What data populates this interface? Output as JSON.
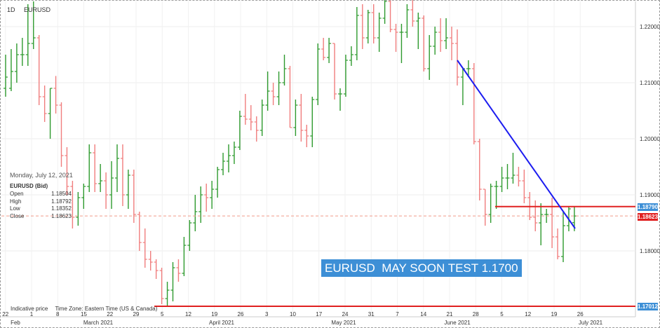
{
  "header": {
    "timeframe": "1D",
    "symbol": "EURUSD"
  },
  "info_panel": {
    "date": "Monday, July 12, 2021",
    "symbol": "EURUSD (Bid)",
    "open_label": "Open",
    "open": "1.18504",
    "high_label": "High",
    "high": "1.18792",
    "low_label": "Low",
    "low": "1.18352",
    "close_label": "Close",
    "close": "1.18623"
  },
  "footer": {
    "price_type": "Indicative price",
    "timezone": "Time Zone: Eastern Time (US & Canada)"
  },
  "annotation": "EURUSD  MAY SOON TEST 1.1700",
  "price_tags": {
    "resistance": "1.18790",
    "last": "1.18623",
    "support": "1.17012"
  },
  "colors": {
    "up": "#2e9a2e",
    "down": "#f07d7d",
    "trendline": "#1c1cf0",
    "level": "#e02020",
    "annotation_bg": "#3d8fd6"
  },
  "chart_data": {
    "type": "ohlc",
    "ylim": [
      1.1695,
      1.2245
    ],
    "y_ticks": [
      1.18,
      1.19,
      1.2,
      1.21,
      1.22
    ],
    "y_tick_labels": [
      "1.18000",
      "1.19000",
      "1.20000",
      "1.21000",
      "1.22000"
    ],
    "x_ticks": [
      "22",
      "1",
      "8",
      "15",
      "22",
      "29",
      "5",
      "12",
      "19",
      "26",
      "3",
      "10",
      "17",
      "24",
      "31",
      "7",
      "14",
      "21",
      "28",
      "5",
      "12",
      "19",
      "26"
    ],
    "x_months": [
      "Feb",
      "March 2021",
      "April 2021",
      "May 2021",
      "June 2021",
      "July 2021"
    ],
    "grid": true,
    "bars": [
      {
        "d": "Feb 18",
        "o": 1.209,
        "h": 1.215,
        "l": 1.2075,
        "c": 1.211
      },
      {
        "d": "Feb 19",
        "o": 1.209,
        "h": 1.216,
        "l": 1.2085,
        "c": 1.212
      },
      {
        "d": "Feb 22",
        "o": 1.212,
        "h": 1.217,
        "l": 1.21,
        "c": 1.215
      },
      {
        "d": "Feb 23",
        "o": 1.215,
        "h": 1.218,
        "l": 1.213,
        "c": 1.215
      },
      {
        "d": "Feb 24",
        "o": 1.215,
        "h": 1.224,
        "l": 1.213,
        "c": 1.217
      },
      {
        "d": "Feb 25",
        "o": 1.217,
        "h": 1.2245,
        "l": 1.216,
        "c": 1.218
      },
      {
        "d": "Feb 26",
        "o": 1.218,
        "h": 1.2185,
        "l": 1.206,
        "c": 1.2075
      },
      {
        "d": "Mar 01",
        "o": 1.2075,
        "h": 1.2095,
        "l": 1.203,
        "c": 1.2045
      },
      {
        "d": "Mar 02",
        "o": 1.2045,
        "h": 1.209,
        "l": 1.2,
        "c": 1.209
      },
      {
        "d": "Mar 03",
        "o": 1.209,
        "h": 1.2112,
        "l": 1.2045,
        "c": 1.206
      },
      {
        "d": "Mar 04",
        "o": 1.206,
        "h": 1.2065,
        "l": 1.195,
        "c": 1.197
      },
      {
        "d": "Mar 05",
        "o": 1.197,
        "h": 1.1985,
        "l": 1.19,
        "c": 1.1915
      },
      {
        "d": "Mar 08",
        "o": 1.1915,
        "h": 1.1925,
        "l": 1.184,
        "c": 1.186
      },
      {
        "d": "Mar 09",
        "o": 1.186,
        "h": 1.1905,
        "l": 1.1845,
        "c": 1.1895
      },
      {
        "d": "Mar 10",
        "o": 1.1895,
        "h": 1.192,
        "l": 1.1875,
        "c": 1.1915
      },
      {
        "d": "Mar 11",
        "o": 1.1915,
        "h": 1.199,
        "l": 1.1905,
        "c": 1.1975
      },
      {
        "d": "Mar 12",
        "o": 1.1975,
        "h": 1.199,
        "l": 1.1905,
        "c": 1.192
      },
      {
        "d": "Mar 15",
        "o": 1.192,
        "h": 1.1955,
        "l": 1.1905,
        "c": 1.1925
      },
      {
        "d": "Mar 16",
        "o": 1.1925,
        "h": 1.194,
        "l": 1.1875,
        "c": 1.19
      },
      {
        "d": "Mar 17",
        "o": 1.19,
        "h": 1.196,
        "l": 1.1875,
        "c": 1.193
      },
      {
        "d": "Mar 18",
        "o": 1.193,
        "h": 1.199,
        "l": 1.1905,
        "c": 1.1965
      },
      {
        "d": "Mar 19",
        "o": 1.1965,
        "h": 1.199,
        "l": 1.188,
        "c": 1.19
      },
      {
        "d": "Mar 22",
        "o": 1.19,
        "h": 1.1945,
        "l": 1.1875,
        "c": 1.1935
      },
      {
        "d": "Mar 23",
        "o": 1.1935,
        "h": 1.1945,
        "l": 1.185,
        "c": 1.1865
      },
      {
        "d": "Mar 24",
        "o": 1.1865,
        "h": 1.187,
        "l": 1.18,
        "c": 1.1815
      },
      {
        "d": "Mar 25",
        "o": 1.1815,
        "h": 1.184,
        "l": 1.177,
        "c": 1.1785
      },
      {
        "d": "Mar 26",
        "o": 1.1785,
        "h": 1.18,
        "l": 1.1765,
        "c": 1.178
      },
      {
        "d": "Mar 29",
        "o": 1.178,
        "h": 1.1785,
        "l": 1.175,
        "c": 1.1765
      },
      {
        "d": "Mar 30",
        "o": 1.1765,
        "h": 1.177,
        "l": 1.1705,
        "c": 1.1715
      },
      {
        "d": "Mar 31",
        "o": 1.1715,
        "h": 1.1745,
        "l": 1.17,
        "c": 1.173
      },
      {
        "d": "Apr 01",
        "o": 1.173,
        "h": 1.178,
        "l": 1.171,
        "c": 1.177
      },
      {
        "d": "Apr 02",
        "o": 1.177,
        "h": 1.1785,
        "l": 1.1745,
        "c": 1.176
      },
      {
        "d": "Apr 05",
        "o": 1.176,
        "h": 1.1825,
        "l": 1.1755,
        "c": 1.181
      },
      {
        "d": "Apr 06",
        "o": 1.181,
        "h": 1.1855,
        "l": 1.18,
        "c": 1.185
      },
      {
        "d": "Apr 07",
        "o": 1.185,
        "h": 1.19,
        "l": 1.1835,
        "c": 1.187
      },
      {
        "d": "Apr 08",
        "o": 1.187,
        "h": 1.1915,
        "l": 1.185,
        "c": 1.19
      },
      {
        "d": "Apr 09",
        "o": 1.19,
        "h": 1.192,
        "l": 1.187,
        "c": 1.1895
      },
      {
        "d": "Apr 12",
        "o": 1.1895,
        "h": 1.1925,
        "l": 1.1875,
        "c": 1.191
      },
      {
        "d": "Apr 13",
        "o": 1.191,
        "h": 1.195,
        "l": 1.1895,
        "c": 1.1945
      },
      {
        "d": "Apr 14",
        "o": 1.1945,
        "h": 1.1975,
        "l": 1.1935,
        "c": 1.196
      },
      {
        "d": "Apr 15",
        "o": 1.196,
        "h": 1.199,
        "l": 1.194,
        "c": 1.197
      },
      {
        "d": "Apr 16",
        "o": 1.197,
        "h": 1.1995,
        "l": 1.1955,
        "c": 1.1985
      },
      {
        "d": "Apr 19",
        "o": 1.1985,
        "h": 1.205,
        "l": 1.198,
        "c": 1.204
      },
      {
        "d": "Apr 20",
        "o": 1.204,
        "h": 1.208,
        "l": 1.2025,
        "c": 1.2035
      },
      {
        "d": "Apr 21",
        "o": 1.2035,
        "h": 1.206,
        "l": 1.2015,
        "c": 1.203
      },
      {
        "d": "Apr 22",
        "o": 1.203,
        "h": 1.204,
        "l": 1.1995,
        "c": 1.2015
      },
      {
        "d": "Apr 23",
        "o": 1.2015,
        "h": 1.207,
        "l": 1.2005,
        "c": 1.206
      },
      {
        "d": "Apr 26",
        "o": 1.206,
        "h": 1.212,
        "l": 1.205,
        "c": 1.2085
      },
      {
        "d": "Apr 27",
        "o": 1.2085,
        "h": 1.21,
        "l": 1.206,
        "c": 1.2075
      },
      {
        "d": "Apr 28",
        "o": 1.2075,
        "h": 1.212,
        "l": 1.206,
        "c": 1.21
      },
      {
        "d": "Apr 29",
        "o": 1.21,
        "h": 1.215,
        "l": 1.2095,
        "c": 1.2125
      },
      {
        "d": "Apr 30",
        "o": 1.2125,
        "h": 1.213,
        "l": 1.202,
        "c": 1.202
      },
      {
        "d": "May 03",
        "o": 1.202,
        "h": 1.207,
        "l": 1.2005,
        "c": 1.206
      },
      {
        "d": "May 04",
        "o": 1.206,
        "h": 1.208,
        "l": 1.1995,
        "c": 1.2015
      },
      {
        "d": "May 05",
        "o": 1.2015,
        "h": 1.2025,
        "l": 1.1985,
        "c": 1.2005
      },
      {
        "d": "May 06",
        "o": 1.2005,
        "h": 1.2075,
        "l": 1.1985,
        "c": 1.207
      },
      {
        "d": "May 07",
        "o": 1.207,
        "h": 1.217,
        "l": 1.206,
        "c": 1.216
      },
      {
        "d": "May 10",
        "o": 1.216,
        "h": 1.218,
        "l": 1.214,
        "c": 1.2145
      },
      {
        "d": "May 11",
        "o": 1.2145,
        "h": 1.218,
        "l": 1.2135,
        "c": 1.217
      },
      {
        "d": "May 12",
        "o": 1.217,
        "h": 1.217,
        "l": 1.207,
        "c": 1.208
      },
      {
        "d": "May 13",
        "o": 1.208,
        "h": 1.209,
        "l": 1.205,
        "c": 1.208
      },
      {
        "d": "May 14",
        "o": 1.208,
        "h": 1.215,
        "l": 1.2075,
        "c": 1.214
      },
      {
        "d": "May 17",
        "o": 1.214,
        "h": 1.2165,
        "l": 1.213,
        "c": 1.215
      },
      {
        "d": "May 18",
        "o": 1.215,
        "h": 1.2235,
        "l": 1.214,
        "c": 1.222
      },
      {
        "d": "May 19",
        "o": 1.222,
        "h": 1.224,
        "l": 1.216,
        "c": 1.218
      },
      {
        "d": "May 20",
        "o": 1.218,
        "h": 1.223,
        "l": 1.217,
        "c": 1.2225
      },
      {
        "d": "May 21",
        "o": 1.2225,
        "h": 1.224,
        "l": 1.217,
        "c": 1.218
      },
      {
        "d": "May 24",
        "o": 1.218,
        "h": 1.2225,
        "l": 1.2155,
        "c": 1.2215
      },
      {
        "d": "May 25",
        "o": 1.2215,
        "h": 1.2265,
        "l": 1.2205,
        "c": 1.2245
      },
      {
        "d": "May 26",
        "o": 1.2245,
        "h": 1.2255,
        "l": 1.219,
        "c": 1.2195
      },
      {
        "d": "May 27",
        "o": 1.2195,
        "h": 1.2205,
        "l": 1.2155,
        "c": 1.219
      },
      {
        "d": "May 28",
        "o": 1.219,
        "h": 1.2205,
        "l": 1.2135,
        "c": 1.219
      },
      {
        "d": "May 31",
        "o": 1.219,
        "h": 1.224,
        "l": 1.218,
        "c": 1.223
      },
      {
        "d": "Jun 01",
        "o": 1.223,
        "h": 1.226,
        "l": 1.22,
        "c": 1.221
      },
      {
        "d": "Jun 02",
        "o": 1.221,
        "h": 1.2225,
        "l": 1.216,
        "c": 1.2215
      },
      {
        "d": "Jun 03",
        "o": 1.2215,
        "h": 1.222,
        "l": 1.212,
        "c": 1.2125
      },
      {
        "d": "Jun 04",
        "o": 1.2125,
        "h": 1.2185,
        "l": 1.2105,
        "c": 1.2165
      },
      {
        "d": "Jun 07",
        "o": 1.2165,
        "h": 1.22,
        "l": 1.215,
        "c": 1.219
      },
      {
        "d": "Jun 08",
        "o": 1.219,
        "h": 1.2215,
        "l": 1.2155,
        "c": 1.2175
      },
      {
        "d": "Jun 09",
        "o": 1.2175,
        "h": 1.2215,
        "l": 1.216,
        "c": 1.218
      },
      {
        "d": "Jun 10",
        "o": 1.218,
        "h": 1.22,
        "l": 1.214,
        "c": 1.217
      },
      {
        "d": "Jun 11",
        "o": 1.217,
        "h": 1.2195,
        "l": 1.2095,
        "c": 1.211
      },
      {
        "d": "Jun 14",
        "o": 1.211,
        "h": 1.2125,
        "l": 1.206,
        "c": 1.2125
      },
      {
        "d": "Jun 15",
        "o": 1.2125,
        "h": 1.214,
        "l": 1.211,
        "c": 1.2125
      },
      {
        "d": "Jun 16",
        "o": 1.2125,
        "h": 1.2135,
        "l": 1.199,
        "c": 1.1995
      },
      {
        "d": "Jun 17",
        "o": 1.1995,
        "h": 1.2,
        "l": 1.189,
        "c": 1.191
      },
      {
        "d": "Jun 18",
        "o": 1.191,
        "h": 1.191,
        "l": 1.1845,
        "c": 1.1865
      },
      {
        "d": "Jun 21",
        "o": 1.1865,
        "h": 1.192,
        "l": 1.185,
        "c": 1.1915
      },
      {
        "d": "Jun 22",
        "o": 1.1915,
        "h": 1.1925,
        "l": 1.1875,
        "c": 1.1915
      },
      {
        "d": "Jun 23",
        "o": 1.1915,
        "h": 1.195,
        "l": 1.1905,
        "c": 1.193
      },
      {
        "d": "Jun 24",
        "o": 1.193,
        "h": 1.1955,
        "l": 1.191,
        "c": 1.193
      },
      {
        "d": "Jun 25",
        "o": 1.193,
        "h": 1.1975,
        "l": 1.192,
        "c": 1.1935
      },
      {
        "d": "Jun 28",
        "o": 1.1935,
        "h": 1.195,
        "l": 1.1915,
        "c": 1.1925
      },
      {
        "d": "Jun 29",
        "o": 1.1925,
        "h": 1.1945,
        "l": 1.1885,
        "c": 1.1895
      },
      {
        "d": "Jun 30",
        "o": 1.1895,
        "h": 1.1905,
        "l": 1.1855,
        "c": 1.186
      },
      {
        "d": "Jul 01",
        "o": 1.186,
        "h": 1.189,
        "l": 1.1835,
        "c": 1.185
      },
      {
        "d": "Jul 02",
        "o": 1.185,
        "h": 1.1885,
        "l": 1.181,
        "c": 1.1865
      },
      {
        "d": "Jul 05",
        "o": 1.1865,
        "h": 1.1875,
        "l": 1.185,
        "c": 1.1865
      },
      {
        "d": "Jul 06",
        "o": 1.1865,
        "h": 1.1895,
        "l": 1.1805,
        "c": 1.1825
      },
      {
        "d": "Jul 07",
        "o": 1.1825,
        "h": 1.184,
        "l": 1.1785,
        "c": 1.179
      },
      {
        "d": "Jul 08",
        "o": 1.179,
        "h": 1.187,
        "l": 1.178,
        "c": 1.1845
      },
      {
        "d": "Jul 09",
        "o": 1.1845,
        "h": 1.188,
        "l": 1.1835,
        "c": 1.1875
      },
      {
        "d": "Jul 12",
        "o": 1.18504,
        "h": 1.18792,
        "l": 1.18352,
        "c": 1.18623
      }
    ],
    "levels": [
      {
        "name": "resistance",
        "value": 1.1879
      },
      {
        "name": "support",
        "value": 1.17012
      }
    ],
    "trendline": [
      {
        "d": "Jun 14",
        "y": 1.214
      },
      {
        "d": "Jul 14",
        "y": 1.184
      }
    ]
  }
}
